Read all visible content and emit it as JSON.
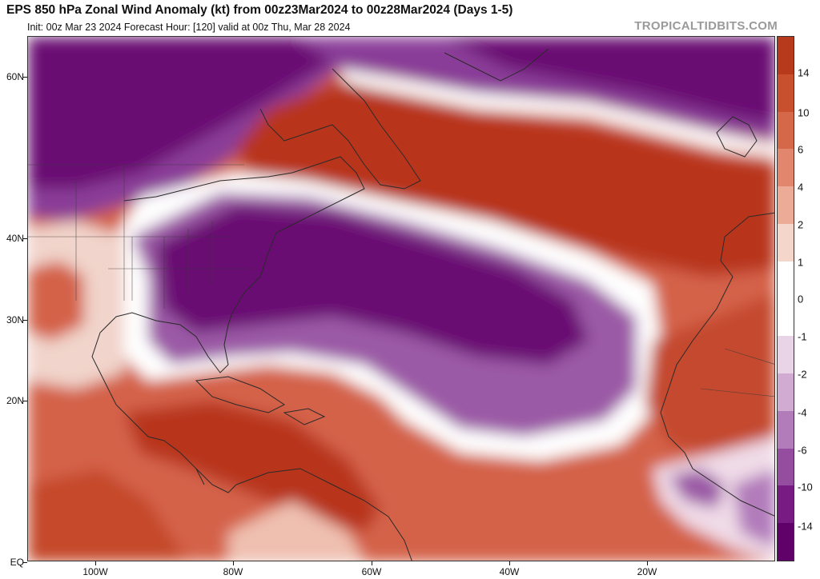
{
  "header": {
    "title": "EPS 850 hPa Zonal Wind Anomaly (kt) from 00z23Mar2024 to 00z28Mar2024 (Days 1-5)",
    "subtitle": "Init: 00z Mar 23 2024   Forecast Hour: [120]   valid at 00z Thu, Mar 28 2024",
    "watermark": "TROPICALTIDBITS.COM"
  },
  "map": {
    "lat_labels": [
      "60N",
      "40N",
      "30N",
      "20N",
      "EQ"
    ],
    "lon_labels": [
      "100W",
      "80W",
      "60W",
      "40W",
      "20W"
    ],
    "colors": {
      "strong_positive": "#b8351a",
      "positive": "#d96a4c",
      "weak_positive": "#ecb9a8",
      "neutral": "#ffffff",
      "weak_negative": "#d7b4d8",
      "negative": "#9b5aa6",
      "strong_negative": "#6a0a73",
      "land_outline": "#2a2a2a"
    }
  },
  "colorbar": {
    "labels": [
      "14",
      "10",
      "6",
      "4",
      "2",
      "1",
      "0",
      "-1",
      "-2",
      "-4",
      "-6",
      "-10",
      "-14"
    ],
    "segments": [
      "#b73a1c",
      "#c8502f",
      "#d6684a",
      "#e2876d",
      "#ecab97",
      "#f5d6cb",
      "#ffffff",
      "#ffffff",
      "#e9d3e7",
      "#d2abd3",
      "#b27cbb",
      "#944d9f",
      "#781c83",
      "#600069"
    ]
  }
}
